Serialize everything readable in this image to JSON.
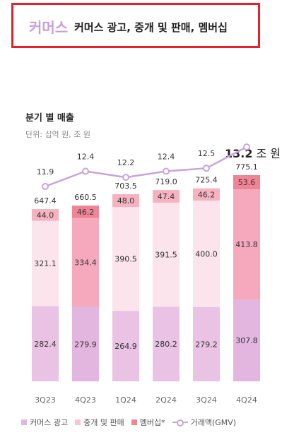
{
  "header": {
    "brand": "커머스",
    "subtitle": "커머스 광고, 중개 및 판매, 멤버십"
  },
  "section": {
    "title": "분기 별 매출",
    "units": "단위: 십억 원, 조 원"
  },
  "callout": {
    "value": "13.2",
    "unit": " 조 원"
  },
  "colors": {
    "ads": "#e9c2e4",
    "brokerage": "#fbe4ec",
    "membership": "#f7b2c1",
    "highlight_ads": "#e3b6df",
    "highlight_brokerage": "#f6a9bd",
    "highlight_membership": "#ee8496",
    "gmv_line": "#c9a3dc",
    "border": "#e8202a"
  },
  "chart_data": {
    "type": "bar",
    "stacked": true,
    "categories": [
      "3Q23",
      "4Q23",
      "1Q24",
      "2Q24",
      "3Q24",
      "4Q24"
    ],
    "highlighted_categories": [
      "4Q23",
      "4Q24"
    ],
    "series": [
      {
        "name": "커머스 광고",
        "values": [
          282.4,
          279.9,
          264.9,
          280.2,
          279.2,
          307.8
        ]
      },
      {
        "name": "중개 및 판매",
        "values": [
          321.1,
          334.4,
          390.5,
          391.5,
          400.0,
          413.8
        ]
      },
      {
        "name": "멤버십*",
        "values": [
          44.0,
          46.2,
          48.0,
          47.4,
          46.2,
          53.6
        ]
      }
    ],
    "totals": [
      647.4,
      660.5,
      703.5,
      719.0,
      725.4,
      775.1
    ],
    "line_series": {
      "name": "거래액(GMV)",
      "values": [
        11.9,
        12.4,
        12.2,
        12.4,
        12.5,
        13.2
      ]
    },
    "value_labels": {
      "series": [
        [
          "282.4",
          "279.9",
          "264.9",
          "280.2",
          "279.2",
          "307.8"
        ],
        [
          "321.1",
          "334.4",
          "390.5",
          "391.5",
          "400.0",
          "413.8"
        ],
        [
          "44.0",
          "46.2",
          "48.0",
          "47.4",
          "46.2",
          "53.6"
        ]
      ],
      "totals": [
        "647.4",
        "660.5",
        "703.5",
        "719.0",
        "725.4",
        "775.1"
      ],
      "gmv": [
        "11.9",
        "12.4",
        "12.2",
        "12.4",
        "12.5",
        ""
      ]
    },
    "legend": [
      "커머스 광고",
      "중개 및 판매",
      "멤버십*",
      "거래액(GMV)"
    ],
    "legend_position": "bottom"
  }
}
